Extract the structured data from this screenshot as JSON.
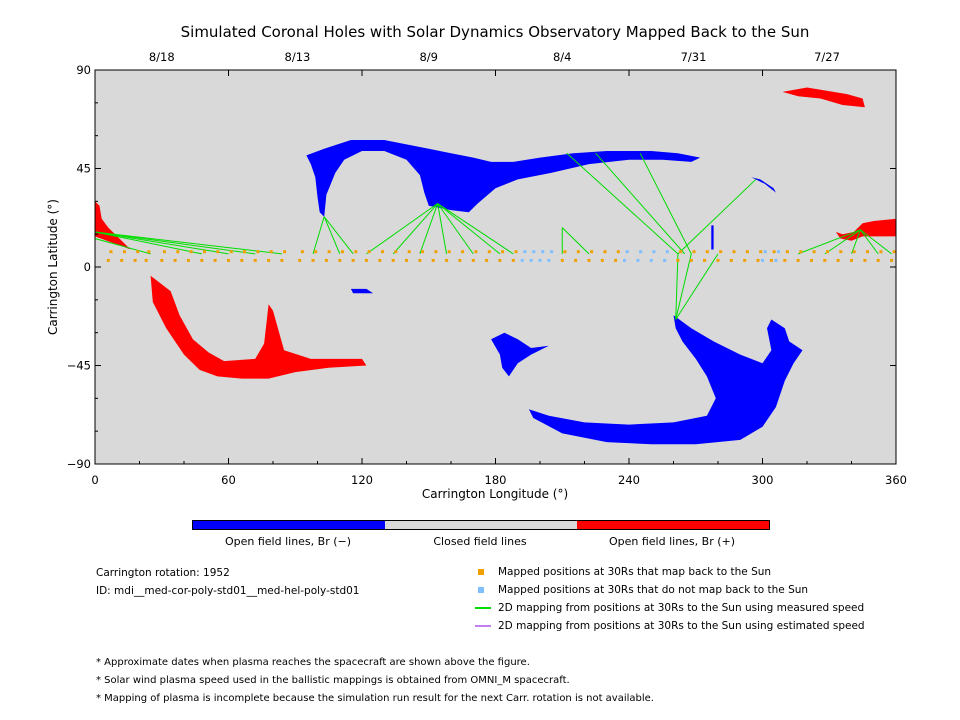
{
  "chart_data": {
    "type": "scatter",
    "title": "Simulated Coronal Holes with Solar Dynamics Observatory Mapped Back to the Sun",
    "xlabel": "Carrington Longitude (°)",
    "ylabel": "Carrington Latitude (°)",
    "xlim": [
      0,
      360
    ],
    "ylim": [
      -90,
      90
    ],
    "x_ticks": [
      "0",
      "60",
      "120",
      "180",
      "240",
      "300",
      "360"
    ],
    "y_ticks": [
      "90",
      "45",
      "0",
      "-45",
      "-90"
    ],
    "top_axis_dates": [
      {
        "label": "8/18",
        "lon": 30
      },
      {
        "label": "8/13",
        "lon": 91
      },
      {
        "label": "8/9",
        "lon": 150
      },
      {
        "label": "8/4",
        "lon": 210
      },
      {
        "label": "7/31",
        "lon": 269
      },
      {
        "label": "7/27",
        "lon": 329
      }
    ],
    "colors": {
      "plot_background": "#d9d9d9",
      "open_negative": "#0000ff",
      "open_positive": "#ff0000",
      "closed": "#d9d9d9",
      "mapped_back": "#f0a000",
      "not_mapped": "#7fbfff",
      "measured_speed_line": "#00dd00",
      "estimated_speed_line": "#c080f0"
    },
    "coronal_holes": [
      {
        "polarity": "negative",
        "lon_lat": [
          [
            95,
            51
          ],
          [
            103,
            54
          ],
          [
            115,
            58
          ],
          [
            130,
            58
          ],
          [
            140,
            56
          ],
          [
            150,
            54
          ],
          [
            160,
            52
          ],
          [
            170,
            50
          ],
          [
            178,
            48
          ],
          [
            188,
            48
          ],
          [
            200,
            50
          ],
          [
            215,
            52
          ],
          [
            230,
            53
          ],
          [
            250,
            53
          ],
          [
            262,
            52
          ],
          [
            272,
            50
          ],
          [
            268,
            48
          ],
          [
            255,
            49
          ],
          [
            240,
            49
          ],
          [
            222,
            47
          ],
          [
            205,
            43
          ],
          [
            190,
            40
          ],
          [
            180,
            36
          ],
          [
            172,
            29
          ],
          [
            168,
            25
          ],
          [
            160,
            26
          ],
          [
            155,
            27
          ],
          [
            150,
            28
          ],
          [
            148,
            34
          ],
          [
            146,
            42
          ],
          [
            140,
            49
          ],
          [
            130,
            53
          ],
          [
            120,
            53
          ],
          [
            112,
            49
          ],
          [
            108,
            43
          ],
          [
            104,
            33
          ],
          [
            103,
            23
          ],
          [
            101,
            25
          ],
          [
            100,
            32
          ],
          [
            99,
            41
          ],
          [
            97,
            47
          ]
        ]
      },
      {
        "polarity": "negative",
        "lon_lat": [
          [
            260,
            -22
          ],
          [
            268,
            -28
          ],
          [
            278,
            -34
          ],
          [
            290,
            -40
          ],
          [
            300,
            -44
          ],
          [
            304,
            -38
          ],
          [
            302,
            -28
          ],
          [
            304,
            -24
          ],
          [
            310,
            -28
          ],
          [
            312,
            -34
          ],
          [
            318,
            -38
          ],
          [
            314,
            -44
          ],
          [
            310,
            -52
          ],
          [
            306,
            -64
          ],
          [
            300,
            -73
          ],
          [
            290,
            -79
          ],
          [
            270,
            -81
          ],
          [
            250,
            -81
          ],
          [
            230,
            -80
          ],
          [
            210,
            -76
          ],
          [
            197,
            -69
          ],
          [
            195,
            -65
          ],
          [
            204,
            -68
          ],
          [
            220,
            -71
          ],
          [
            240,
            -72
          ],
          [
            260,
            -71
          ],
          [
            275,
            -68
          ],
          [
            279,
            -60
          ],
          [
            275,
            -50
          ],
          [
            270,
            -42
          ],
          [
            264,
            -34
          ],
          [
            261,
            -28
          ]
        ]
      },
      {
        "polarity": "negative",
        "lon_lat": [
          [
            178,
            -33
          ],
          [
            184,
            -30
          ],
          [
            190,
            -33
          ],
          [
            196,
            -37
          ],
          [
            204,
            -36
          ],
          [
            196,
            -40
          ],
          [
            190,
            -44
          ],
          [
            186,
            -50
          ],
          [
            183,
            -46
          ],
          [
            182,
            -40
          ]
        ]
      },
      {
        "polarity": "negative",
        "lon_lat": [
          [
            115,
            -10
          ],
          [
            122,
            -10
          ],
          [
            125,
            -12
          ],
          [
            116,
            -12
          ]
        ]
      },
      {
        "polarity": "negative",
        "lon_lat": [
          [
            277,
            19
          ],
          [
            278,
            19
          ],
          [
            278,
            8
          ],
          [
            277,
            8
          ]
        ]
      },
      {
        "polarity": "negative",
        "lon_lat": [
          [
            295,
            41
          ],
          [
            301,
            38
          ],
          [
            306,
            34
          ],
          [
            305,
            36
          ],
          [
            299,
            40
          ]
        ]
      },
      {
        "polarity": "positive",
        "lon_lat": [
          [
            25,
            -4
          ],
          [
            34,
            -11
          ],
          [
            38,
            -22
          ],
          [
            44,
            -33
          ],
          [
            51,
            -39
          ],
          [
            58,
            -43
          ],
          [
            72,
            -42
          ],
          [
            76,
            -35
          ],
          [
            78,
            -17
          ],
          [
            80,
            -20
          ],
          [
            85,
            -38
          ],
          [
            97,
            -42
          ],
          [
            120,
            -42
          ],
          [
            122,
            -45
          ],
          [
            105,
            -46
          ],
          [
            90,
            -48
          ],
          [
            78,
            -51
          ],
          [
            66,
            -51
          ],
          [
            55,
            -50
          ],
          [
            47,
            -47
          ],
          [
            40,
            -40
          ],
          [
            32,
            -28
          ],
          [
            26,
            -16
          ]
        ]
      },
      {
        "polarity": "positive",
        "lon_lat": [
          [
            333,
            16
          ],
          [
            336,
            15
          ],
          [
            341,
            16
          ],
          [
            345,
            20
          ],
          [
            350,
            21
          ],
          [
            360,
            22
          ],
          [
            360,
            14
          ],
          [
            352,
            14
          ],
          [
            345,
            14
          ],
          [
            340,
            12
          ],
          [
            335,
            13
          ]
        ]
      },
      {
        "polarity": "positive",
        "lon_lat": [
          [
            309,
            80
          ],
          [
            320,
            82
          ],
          [
            338,
            79
          ],
          [
            345,
            77
          ],
          [
            346,
            73
          ],
          [
            336,
            74
          ],
          [
            326,
            77
          ],
          [
            316,
            78
          ]
        ]
      },
      {
        "polarity": "positive",
        "lon_lat": [
          [
            0,
            30
          ],
          [
            2,
            28
          ],
          [
            3,
            22
          ],
          [
            6,
            18
          ],
          [
            16,
            8
          ],
          [
            0,
            14
          ]
        ]
      }
    ],
    "mapped_positions": {
      "mapped_back_lon": [
        6,
        12,
        18,
        23,
        30,
        36,
        42,
        48,
        54,
        60,
        66,
        72,
        78,
        84,
        92,
        98,
        104,
        110,
        116,
        122,
        128,
        134,
        140,
        146,
        152,
        158,
        164,
        170,
        176,
        182,
        188,
        210,
        216,
        222,
        228,
        234,
        262,
        268,
        274,
        280,
        286,
        292,
        298,
        304,
        310,
        316,
        322,
        328,
        334,
        340,
        346,
        352,
        358
      ],
      "not_mapped_lon": [
        192,
        196,
        200,
        204,
        238,
        244,
        250,
        256,
        300,
        306
      ],
      "lat_band": [
        3,
        7
      ]
    },
    "field_lines": {
      "measured": [
        [
          [
            0,
            16
          ],
          [
            48,
            6
          ]
        ],
        [
          [
            0,
            16
          ],
          [
            60,
            6
          ]
        ],
        [
          [
            0,
            16
          ],
          [
            72,
            6
          ]
        ],
        [
          [
            0,
            16
          ],
          [
            84,
            6
          ]
        ],
        [
          [
            0,
            13
          ],
          [
            25,
            6
          ]
        ],
        [
          [
            103,
            23
          ],
          [
            98,
            6
          ]
        ],
        [
          [
            103,
            23
          ],
          [
            110,
            6
          ]
        ],
        [
          [
            103,
            23
          ],
          [
            116,
            6
          ]
        ],
        [
          [
            154,
            29
          ],
          [
            122,
            6
          ]
        ],
        [
          [
            154,
            29
          ],
          [
            134,
            6
          ]
        ],
        [
          [
            154,
            29
          ],
          [
            146,
            6
          ]
        ],
        [
          [
            154,
            29
          ],
          [
            158,
            6
          ]
        ],
        [
          [
            154,
            29
          ],
          [
            170,
            6
          ]
        ],
        [
          [
            154,
            29
          ],
          [
            182,
            6
          ]
        ],
        [
          [
            154,
            29
          ],
          [
            188,
            6
          ]
        ],
        [
          [
            210,
            18
          ],
          [
            210,
            6
          ]
        ],
        [
          [
            210,
            18
          ],
          [
            222,
            6
          ]
        ],
        [
          [
            212,
            52
          ],
          [
            262,
            6
          ]
        ],
        [
          [
            225,
            52
          ],
          [
            265,
            6
          ]
        ],
        [
          [
            245,
            52
          ],
          [
            268,
            6
          ]
        ],
        [
          [
            297,
            40
          ],
          [
            262,
            6
          ]
        ],
        [
          [
            261,
            -24
          ],
          [
            262,
            6
          ]
        ],
        [
          [
            261,
            -24
          ],
          [
            268,
            6
          ]
        ],
        [
          [
            261,
            -24
          ],
          [
            280,
            6
          ]
        ],
        [
          [
            344,
            17
          ],
          [
            316,
            6
          ]
        ],
        [
          [
            344,
            17
          ],
          [
            328,
            6
          ]
        ],
        [
          [
            344,
            17
          ],
          [
            340,
            6
          ]
        ],
        [
          [
            344,
            17
          ],
          [
            352,
            6
          ]
        ],
        [
          [
            344,
            17
          ],
          [
            358,
            6
          ]
        ]
      ],
      "estimated": []
    },
    "colorbar": {
      "labels": [
        "Open field lines, Br (−)",
        "Closed field lines",
        "Open field lines, Br (+)"
      ],
      "colors": [
        "#0000ff",
        "#d9d9d9",
        "#ff0000"
      ]
    },
    "legend": [
      {
        "text": "Mapped positions at 30Rs that map back to the Sun",
        "kind": "square",
        "color": "#f0a000"
      },
      {
        "text": "Mapped positions at 30Rs that do not map back to the Sun",
        "kind": "square",
        "color": "#7fbfff"
      },
      {
        "text": "2D mapping from positions at 30Rs to the Sun using measured speed",
        "kind": "line",
        "color": "#00dd00"
      },
      {
        "text": "2D mapping from positions at 30Rs to the Sun using estimated speed",
        "kind": "line",
        "color": "#c080f0"
      }
    ]
  },
  "info": {
    "rotation": "Carrington rotation: 1952",
    "id": "ID: mdi__med-cor-poly-std01__med-hel-poly-std01"
  },
  "footnotes": [
    "* Approximate dates when plasma reaches the spacecraft are shown above the figure.",
    "* Solar wind plasma speed used in the ballistic mappings is obtained from OMNI_M spacecraft.",
    "* Mapping of plasma is incomplete because the simulation run result for the next Carr. rotation is not available."
  ]
}
